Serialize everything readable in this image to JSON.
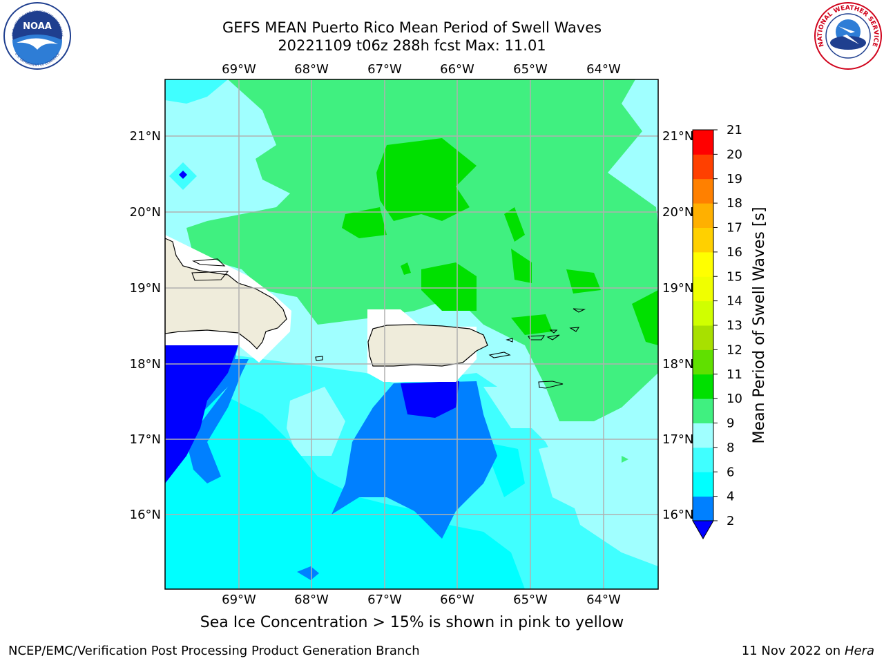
{
  "header": {
    "title": "GEFS MEAN Puerto Rico Mean Period of Swell Waves",
    "subtitle": "20221109 t06z 288h fcst   Max: 11.01"
  },
  "map": {
    "lon_ticks": [
      "69°W",
      "68°W",
      "67°W",
      "66°W",
      "65°W",
      "64°W"
    ],
    "lat_ticks": [
      "21°N",
      "20°N",
      "19°N",
      "18°N",
      "17°N",
      "16°N"
    ],
    "land_color": "#efecdb",
    "grid_color": "#b0b0b0"
  },
  "colorbar": {
    "label": "Mean Period of Swell Waves [s]",
    "levels": [
      "2",
      "4",
      "6",
      "8",
      "9",
      "10",
      "11",
      "12",
      "13",
      "14",
      "15",
      "16",
      "17",
      "18",
      "19",
      "20",
      "21"
    ],
    "colors": [
      "#0000ff",
      "#0080ff",
      "#00ffff",
      "#40ffff",
      "#a0ffff",
      "#40f080",
      "#00e000",
      "#60e000",
      "#a8e000",
      "#d0ff00",
      "#f0ff00",
      "#ffff00",
      "#ffd000",
      "#ffb000",
      "#ff8000",
      "#ff4000",
      "#ff0000"
    ]
  },
  "footer": {
    "note": "Sea Ice Concentration > 15% is shown in pink to yellow",
    "credit": "NCEP/EMC/Verification Post Processing Product Generation Branch",
    "date": "11 Nov 2022 on",
    "machine": "Hera"
  },
  "logos": {
    "noaa": "NOAA",
    "noaa_ring_top": "NATIONAL OCEANIC AND ATMOSPHERIC ADMINISTRATION",
    "noaa_ring_bottom": "U.S. DEPARTMENT OF COMMERCE",
    "nws_ring": "NATIONAL WEATHER SERVICE"
  }
}
